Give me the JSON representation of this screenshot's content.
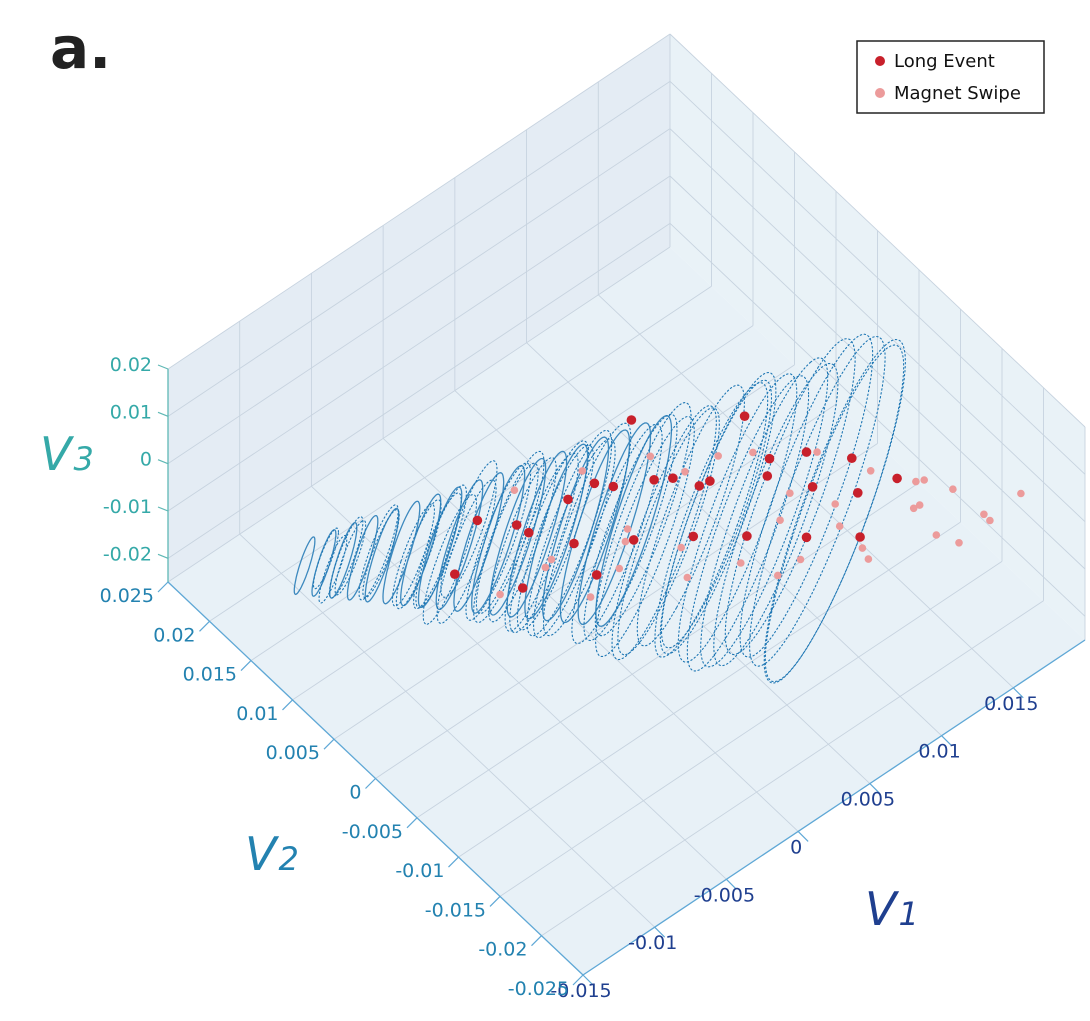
{
  "panel_label": "a.",
  "legend": {
    "items": [
      {
        "label": "Long Event",
        "color": "#c8202b"
      },
      {
        "label": "Magnet Swipe",
        "color": "#ec9b9b"
      }
    ]
  },
  "axes": {
    "v1": {
      "main": "V",
      "sub": "1",
      "color": "#1f3f8f"
    },
    "v2": {
      "main": "V",
      "sub": "2",
      "color": "#2382b0"
    },
    "v3": {
      "main": "V",
      "sub": "3",
      "color": "#35a9a8"
    }
  },
  "chart_data": {
    "type": "scatter",
    "projection": "3d",
    "xlabel": "V1",
    "ylabel": "V2",
    "zlabel": "V3",
    "xlim": [
      -0.015,
      0.02
    ],
    "ylim": [
      -0.025,
      0.025
    ],
    "zlim": [
      -0.025,
      0.02
    ],
    "x_ticks": [
      "-0.015",
      "-0.01",
      "-0.005",
      "0",
      "0.005",
      "0.01",
      "0.015"
    ],
    "y_ticks": [
      "-0.025",
      "-0.02",
      "-0.015",
      "-0.01",
      "-0.005",
      "0",
      "0.005",
      "0.01",
      "0.015",
      "0.02",
      "0.025"
    ],
    "z_ticks": [
      "-0.02",
      "-0.01",
      "0",
      "0.01",
      "0.02"
    ],
    "grid": true,
    "legend_position": "top-right",
    "colors": {
      "trajectory": "#1f77b4",
      "long_event": "#c8202b",
      "magnet_swipe": "#ec9b9b"
    },
    "series": [
      {
        "name": "Long Event",
        "color": "#c8202b",
        "points": [
          [
            -0.004,
            0.002,
            0.003
          ],
          [
            -0.001,
            0.001,
            0.004
          ],
          [
            0.001,
            -0.001,
            0.006
          ],
          [
            0.004,
            -0.003,
            0.005
          ],
          [
            0.006,
            -0.004,
            0.002
          ],
          [
            0.009,
            -0.006,
            0.004
          ],
          [
            0.011,
            -0.007,
            0.003
          ],
          [
            0.013,
            -0.009,
            0.001
          ],
          [
            0.002,
            0.003,
            -0.002
          ],
          [
            0.005,
            0.001,
            -0.004
          ],
          [
            0.007,
            -0.001,
            -0.006
          ],
          [
            0.01,
            -0.004,
            -0.005
          ],
          [
            0.012,
            -0.006,
            -0.008
          ],
          [
            0.014,
            -0.008,
            -0.01
          ],
          [
            -0.002,
            0.004,
            -0.006
          ],
          [
            0.0,
            0.002,
            -0.009
          ],
          [
            0.003,
            0.0,
            -0.011
          ],
          [
            0.006,
            -0.002,
            -0.013
          ],
          [
            0.008,
            -0.005,
            -0.012
          ],
          [
            0.011,
            -0.007,
            -0.015
          ],
          [
            0.013,
            -0.01,
            -0.014
          ],
          [
            -0.006,
            0.006,
            -0.01
          ],
          [
            -0.003,
            0.003,
            -0.014
          ],
          [
            0.001,
            0.001,
            -0.016
          ],
          [
            0.009,
            -0.003,
            0.008
          ],
          [
            0.004,
            0.002,
            0.009
          ],
          [
            -0.005,
            0.005,
            0.001
          ],
          [
            0.015,
            -0.011,
            -0.004
          ]
        ]
      },
      {
        "name": "Magnet Swipe",
        "color": "#ec9b9b",
        "points": [
          [
            0.01,
            -0.01,
            0.01
          ],
          [
            0.012,
            -0.013,
            0.007
          ],
          [
            0.014,
            -0.015,
            0.004
          ],
          [
            0.016,
            -0.016,
            0.0
          ],
          [
            0.017,
            -0.018,
            -0.004
          ],
          [
            0.018,
            -0.017,
            -0.009
          ],
          [
            0.016,
            -0.014,
            -0.013
          ],
          [
            0.013,
            -0.011,
            -0.017
          ],
          [
            0.009,
            -0.007,
            -0.019
          ],
          [
            0.005,
            -0.003,
            -0.018
          ],
          [
            0.002,
            0.0,
            -0.015
          ],
          [
            -0.001,
            0.003,
            -0.012
          ],
          [
            0.006,
            -0.005,
            0.009
          ],
          [
            0.003,
            -0.002,
            0.01
          ],
          [
            0.0,
            0.001,
            0.008
          ],
          [
            -0.003,
            0.004,
            0.005
          ],
          [
            0.008,
            -0.009,
            -0.002
          ],
          [
            0.011,
            -0.011,
            -0.006
          ],
          [
            0.012,
            -0.012,
            -0.011
          ],
          [
            0.007,
            -0.006,
            -0.014
          ],
          [
            0.004,
            -0.004,
            -0.008
          ],
          [
            0.002,
            -0.001,
            -0.005
          ],
          [
            -0.002,
            0.002,
            -0.01
          ],
          [
            0.015,
            -0.013,
            -0.007
          ],
          [
            0.019,
            -0.019,
            -0.002
          ],
          [
            0.017,
            -0.015,
            -0.015
          ],
          [
            0.01,
            -0.008,
            -0.016
          ],
          [
            0.0,
            0.0,
            -0.017
          ],
          [
            -0.004,
            0.004,
            -0.015
          ],
          [
            0.014,
            -0.016,
            0.006
          ],
          [
            0.009,
            -0.004,
            0.002
          ],
          [
            0.006,
            -0.001,
            -0.001
          ],
          [
            0.011,
            -0.005,
            -0.009
          ],
          [
            0.013,
            -0.007,
            -0.012
          ],
          [
            0.003,
            0.001,
            -0.013
          ],
          [
            0.016,
            -0.012,
            -0.01
          ]
        ]
      }
    ]
  }
}
